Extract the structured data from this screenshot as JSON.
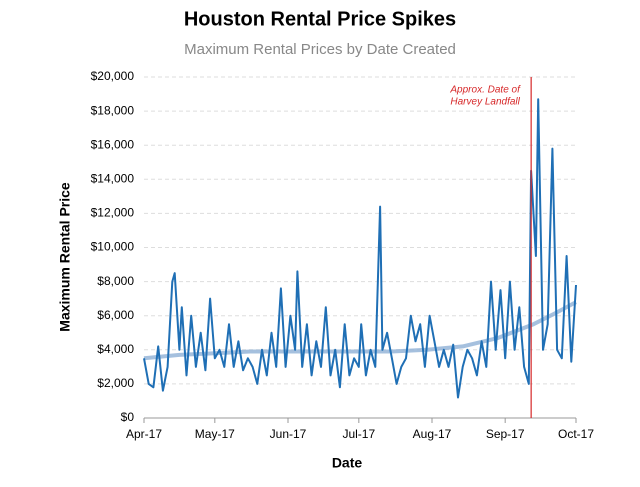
{
  "chart_data": {
    "type": "line",
    "title": "Houston Rental Price Spikes",
    "subtitle": "Maximum Rental Prices by Date Created",
    "xlabel": "Date",
    "ylabel": "Maximum Rental Price",
    "xlim": [
      0,
      183
    ],
    "xticks": [
      {
        "value": 0,
        "label": "Apr-17"
      },
      {
        "value": 30,
        "label": "May-17"
      },
      {
        "value": 61,
        "label": "Jun-17"
      },
      {
        "value": 91,
        "label": "Jul-17"
      },
      {
        "value": 122,
        "label": "Aug-17"
      },
      {
        "value": 153,
        "label": "Sep-17"
      },
      {
        "value": 183,
        "label": "Oct-17"
      }
    ],
    "ylim": [
      0,
      20000
    ],
    "yticks": [
      {
        "value": 0,
        "label": "$0"
      },
      {
        "value": 2000,
        "label": "$2,000"
      },
      {
        "value": 4000,
        "label": "$4,000"
      },
      {
        "value": 6000,
        "label": "$6,000"
      },
      {
        "value": 8000,
        "label": "$8,000"
      },
      {
        "value": 10000,
        "label": "$10,000"
      },
      {
        "value": 12000,
        "label": "$12,000"
      },
      {
        "value": 14000,
        "label": "$14,000"
      },
      {
        "value": 16000,
        "label": "$16,000"
      },
      {
        "value": 18000,
        "label": "$18,000"
      },
      {
        "value": 20000,
        "label": "$20,000"
      }
    ],
    "grid": true,
    "series": [
      {
        "color": "#1f6fb5",
        "width": 2,
        "x": [
          0,
          2,
          4,
          6,
          8,
          10,
          12,
          13,
          15,
          16,
          18,
          20,
          22,
          24,
          26,
          28,
          30,
          32,
          34,
          36,
          38,
          40,
          42,
          44,
          46,
          48,
          50,
          52,
          54,
          56,
          58,
          60,
          62,
          64,
          65,
          67,
          69,
          71,
          73,
          75,
          77,
          79,
          81,
          83,
          85,
          87,
          89,
          91,
          92,
          94,
          96,
          98,
          100,
          101,
          103,
          105,
          107,
          109,
          111,
          113,
          115,
          117,
          119,
          121,
          123,
          125,
          127,
          129,
          131,
          133,
          135,
          137,
          139,
          141,
          143,
          145,
          147,
          149,
          151,
          153,
          155,
          157,
          159,
          161,
          163,
          164,
          166,
          167,
          169,
          171,
          173,
          175,
          177,
          179,
          181,
          183
        ],
        "values": [
          3500,
          2000,
          1800,
          4200,
          1600,
          3000,
          8000,
          8500,
          4000,
          6500,
          2500,
          6000,
          3000,
          5000,
          2800,
          7000,
          3500,
          4000,
          3000,
          5500,
          3000,
          4500,
          2800,
          3500,
          3000,
          2000,
          4000,
          2500,
          5000,
          3000,
          7600,
          3000,
          6000,
          4000,
          8600,
          3000,
          5500,
          2500,
          4500,
          3000,
          6500,
          2500,
          4000,
          1800,
          5500,
          2500,
          3500,
          3000,
          5500,
          2500,
          4000,
          3000,
          12400,
          4000,
          5000,
          3500,
          2000,
          3000,
          3500,
          6000,
          4500,
          5500,
          3000,
          6000,
          4500,
          3000,
          4000,
          3000,
          4300,
          1200,
          3000,
          4000,
          3500,
          2500,
          4500,
          3000,
          8000,
          4000,
          7500,
          3500,
          8000,
          4000,
          6500,
          3000,
          2000,
          14500,
          9500,
          18700,
          4000,
          5500,
          15800,
          4000,
          3500,
          9500,
          3300,
          7800
        ]
      },
      {
        "color": "#8fb0d6",
        "width": 4,
        "x": [
          0,
          15,
          30,
          45,
          60,
          75,
          90,
          105,
          120,
          135,
          150,
          165,
          175,
          183
        ],
        "values": [
          3500,
          3700,
          3800,
          3900,
          3900,
          3900,
          3900,
          3900,
          4000,
          4200,
          4700,
          5500,
          6200,
          6800
        ]
      }
    ],
    "annotation": {
      "x": 164,
      "color": "#d62728",
      "lines": [
        "Approx. Date of",
        "Harvey Landfall"
      ]
    }
  }
}
